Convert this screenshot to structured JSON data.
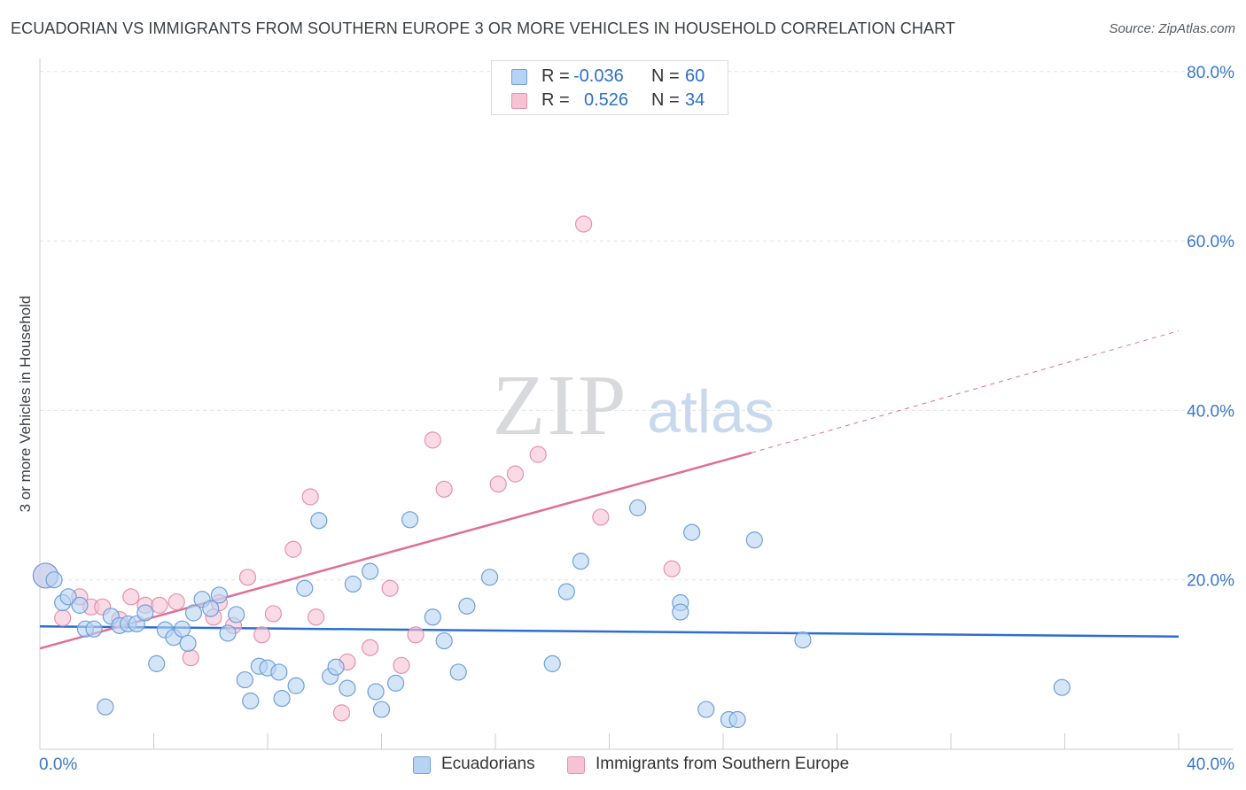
{
  "title": "ECUADORIAN VS IMMIGRANTS FROM SOUTHERN EUROPE 3 OR MORE VEHICLES IN HOUSEHOLD CORRELATION CHART",
  "source": "Source: ZipAtlas.com",
  "watermark": {
    "zip": "ZIP",
    "atlas": "atlas"
  },
  "legend": {
    "rows": [
      {
        "r_label": "R =",
        "r_value": "-0.036",
        "n_label": "N =",
        "n_value": "60"
      },
      {
        "r_label": "R =",
        "r_value": "0.526",
        "n_label": "N =",
        "n_value": "34"
      }
    ]
  },
  "bottom_legend": {
    "ecuadorians": "Ecuadorians",
    "southern_europe": "Immigrants from Southern Europe"
  },
  "colors": {
    "blue_fill": "#b7d3f3",
    "blue_stroke": "#6f9fd8",
    "blue_line": "#2c6fd1",
    "pink_fill": "#f6c3d3",
    "pink_stroke": "#e591ae",
    "pink_line": "#e06e98",
    "axis_text": "#3b78c9",
    "grid": "#dfe3e8"
  },
  "chart_data": {
    "type": "scatter",
    "title": "ECUADORIAN VS IMMIGRANTS FROM SOUTHERN EUROPE 3 OR MORE VEHICLES IN HOUSEHOLD CORRELATION CHART",
    "xlabel": "",
    "ylabel": "3 or more Vehicles in Household",
    "xlim": [
      0,
      40
    ],
    "ylim": [
      0,
      80
    ],
    "x_tick_labels": [
      "0.0%",
      "40.0%"
    ],
    "y_ticks": [
      20,
      40,
      60,
      80
    ],
    "y_tick_labels": [
      "20.0%",
      "40.0%",
      "60.0%",
      "80.0%"
    ],
    "grid": true,
    "series": [
      {
        "name": "Ecuadorians",
        "points": [
          [
            0.2,
            20.5
          ],
          [
            0.5,
            20.0
          ],
          [
            0.8,
            17.3
          ],
          [
            1.0,
            18.0
          ],
          [
            1.4,
            17.0
          ],
          [
            1.6,
            14.2
          ],
          [
            1.9,
            14.2
          ],
          [
            2.3,
            5.0
          ],
          [
            2.5,
            15.7
          ],
          [
            2.8,
            14.6
          ],
          [
            3.1,
            14.8
          ],
          [
            3.4,
            14.8
          ],
          [
            3.7,
            16.1
          ],
          [
            4.1,
            10.1
          ],
          [
            4.4,
            14.1
          ],
          [
            4.7,
            13.2
          ],
          [
            5.0,
            14.2
          ],
          [
            5.2,
            12.5
          ],
          [
            5.4,
            16.1
          ],
          [
            5.7,
            17.7
          ],
          [
            6.0,
            16.6
          ],
          [
            6.3,
            18.2
          ],
          [
            6.6,
            13.7
          ],
          [
            6.9,
            15.9
          ],
          [
            7.2,
            8.2
          ],
          [
            7.4,
            5.7
          ],
          [
            7.7,
            9.8
          ],
          [
            8.0,
            9.6
          ],
          [
            8.4,
            9.1
          ],
          [
            8.5,
            6.0
          ],
          [
            9.0,
            7.5
          ],
          [
            9.3,
            19.0
          ],
          [
            9.8,
            27.0
          ],
          [
            10.2,
            8.6
          ],
          [
            10.4,
            9.7
          ],
          [
            10.8,
            7.2
          ],
          [
            11.0,
            19.5
          ],
          [
            11.6,
            21.0
          ],
          [
            11.8,
            6.8
          ],
          [
            12.0,
            4.7
          ],
          [
            12.5,
            7.8
          ],
          [
            13.0,
            27.1
          ],
          [
            13.8,
            15.6
          ],
          [
            14.2,
            12.8
          ],
          [
            14.7,
            9.1
          ],
          [
            15.0,
            16.9
          ],
          [
            15.8,
            20.3
          ],
          [
            18.0,
            10.1
          ],
          [
            18.5,
            18.6
          ],
          [
            19.0,
            22.2
          ],
          [
            21.0,
            28.5
          ],
          [
            22.5,
            17.3
          ],
          [
            22.5,
            16.2
          ],
          [
            22.9,
            25.6
          ],
          [
            23.4,
            4.7
          ],
          [
            24.2,
            3.5
          ],
          [
            24.5,
            3.5
          ],
          [
            25.1,
            24.7
          ],
          [
            26.8,
            12.9
          ],
          [
            35.9,
            7.3
          ]
        ]
      },
      {
        "name": "Immigrants from Southern Europe",
        "points": [
          [
            0.2,
            20.5
          ],
          [
            0.8,
            15.5
          ],
          [
            1.4,
            18.0
          ],
          [
            1.8,
            16.8
          ],
          [
            2.2,
            16.8
          ],
          [
            2.8,
            15.3
          ],
          [
            3.2,
            18.0
          ],
          [
            3.7,
            17.0
          ],
          [
            4.2,
            17.0
          ],
          [
            4.8,
            17.4
          ],
          [
            5.3,
            10.8
          ],
          [
            6.1,
            15.6
          ],
          [
            6.3,
            17.3
          ],
          [
            6.8,
            14.6
          ],
          [
            7.3,
            20.3
          ],
          [
            7.8,
            13.5
          ],
          [
            8.2,
            16.0
          ],
          [
            8.9,
            23.6
          ],
          [
            9.5,
            29.8
          ],
          [
            9.7,
            15.6
          ],
          [
            10.6,
            4.3
          ],
          [
            10.8,
            10.3
          ],
          [
            11.6,
            12.0
          ],
          [
            12.3,
            19.0
          ],
          [
            12.7,
            9.9
          ],
          [
            13.2,
            13.5
          ],
          [
            13.8,
            36.5
          ],
          [
            14.2,
            30.7
          ],
          [
            16.1,
            31.3
          ],
          [
            16.7,
            32.5
          ],
          [
            17.5,
            34.8
          ],
          [
            19.1,
            62.0
          ],
          [
            19.7,
            27.4
          ],
          [
            22.2,
            21.3
          ]
        ]
      }
    ],
    "trendlines": [
      {
        "series": "Ecuadorians",
        "x": [
          0,
          40
        ],
        "y": [
          14.5,
          13.3
        ],
        "style": "solid"
      },
      {
        "series": "Immigrants from Southern Europe",
        "x": [
          0,
          25
        ],
        "y": [
          11.9,
          35.0
        ],
        "style": "solid"
      },
      {
        "series": "Immigrants from Southern Europe",
        "x": [
          25,
          40
        ],
        "y": [
          35.0,
          49.4
        ],
        "style": "dashed"
      }
    ]
  }
}
